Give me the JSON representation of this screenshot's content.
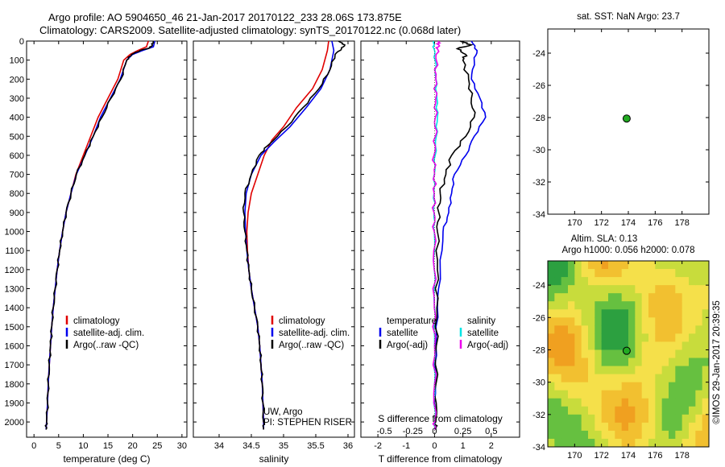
{
  "header": {
    "line1": "Argo profile: AO 5904650_46 21-Jan-2017 20170122_233 28.06S 173.875E",
    "line2": "Climatology: CARS2009. Satellite-adjusted climatology: synTS_20170122.nc (0.068d later)"
  },
  "colors": {
    "climatology": "#e00000",
    "satellite": "#0000ee",
    "argo": "#000000",
    "sal_sat": "#00e5e5",
    "sal_argo": "#ee00ee",
    "marker": "#22aa22"
  },
  "chart_data": [
    {
      "type": "line",
      "name": "temperature",
      "xlabel": "temperature (deg C)",
      "ylabel": "",
      "xlim": [
        -1.5,
        31
      ],
      "ylim": [
        2080,
        0
      ],
      "xticks": [
        0,
        5,
        10,
        15,
        20,
        25,
        30
      ],
      "yticks": [
        0,
        100,
        200,
        300,
        400,
        500,
        600,
        700,
        800,
        900,
        1000,
        1100,
        1200,
        1300,
        1400,
        1500,
        1600,
        1700,
        1800,
        1900,
        2000
      ],
      "legend": [
        "climatology",
        "satellite-adj. clim.",
        "Argo(..raw -QC)"
      ],
      "series": [
        {
          "name": "climatology",
          "color": "#e00000",
          "points": [
            [
              23.2,
              0
            ],
            [
              22.8,
              30
            ],
            [
              21,
              50
            ],
            [
              19.5,
              70
            ],
            [
              18.2,
              100
            ],
            [
              17,
              200
            ],
            [
              15,
              300
            ],
            [
              13,
              400
            ],
            [
              11.5,
              500
            ],
            [
              10,
              600
            ],
            [
              8.5,
              700
            ],
            [
              7.5,
              800
            ],
            [
              6.5,
              900
            ],
            [
              5.8,
              1000
            ],
            [
              5.2,
              1100
            ],
            [
              4.7,
              1200
            ],
            [
              4.3,
              1300
            ],
            [
              3.9,
              1400
            ],
            [
              3.6,
              1500
            ],
            [
              3.35,
              1600
            ],
            [
              3.1,
              1700
            ],
            [
              2.9,
              1800
            ],
            [
              2.75,
              1900
            ],
            [
              2.55,
              2000
            ],
            [
              2.45,
              2040
            ]
          ]
        },
        {
          "name": "satellite-adj. clim.",
          "color": "#0000ee",
          "points": [
            [
              24.5,
              0
            ],
            [
              24.2,
              30
            ],
            [
              22,
              50
            ],
            [
              20,
              70
            ],
            [
              18.8,
              100
            ],
            [
              17.5,
              200
            ],
            [
              15.5,
              300
            ],
            [
              13.5,
              400
            ],
            [
              12,
              500
            ],
            [
              10.3,
              600
            ],
            [
              8.6,
              700
            ],
            [
              7.5,
              800
            ],
            [
              6.5,
              900
            ],
            [
              5.8,
              1000
            ],
            [
              5.2,
              1100
            ],
            [
              4.7,
              1200
            ],
            [
              4.3,
              1300
            ],
            [
              3.9,
              1400
            ],
            [
              3.6,
              1500
            ],
            [
              3.35,
              1600
            ],
            [
              3.1,
              1700
            ],
            [
              2.9,
              1800
            ],
            [
              2.75,
              1900
            ],
            [
              2.55,
              2000
            ],
            [
              2.45,
              2040
            ]
          ]
        },
        {
          "name": "Argo(..raw -QC)",
          "color": "#000000",
          "points": [
            [
              24.2,
              0
            ],
            [
              24,
              20
            ],
            [
              23.5,
              35
            ],
            [
              21.5,
              50
            ],
            [
              19.8,
              70
            ],
            [
              18.8,
              100
            ],
            [
              17.6,
              200
            ],
            [
              15.6,
              300
            ],
            [
              13.8,
              400
            ],
            [
              12,
              500
            ],
            [
              10.3,
              600
            ],
            [
              8.6,
              700
            ],
            [
              7.5,
              800
            ],
            [
              6.5,
              900
            ],
            [
              5.8,
              1000
            ],
            [
              5.2,
              1100
            ],
            [
              4.7,
              1200
            ],
            [
              4.3,
              1300
            ],
            [
              3.9,
              1400
            ],
            [
              3.6,
              1500
            ],
            [
              3.35,
              1600
            ],
            [
              3.1,
              1700
            ],
            [
              2.9,
              1800
            ],
            [
              2.75,
              1900
            ],
            [
              2.55,
              2000
            ],
            [
              2.45,
              2040
            ]
          ]
        }
      ]
    },
    {
      "type": "line",
      "name": "salinity",
      "xlabel": "salinity",
      "ylabel": "",
      "xlim": [
        33.6,
        36.1
      ],
      "ylim": [
        2080,
        0
      ],
      "xticks": [
        34,
        34.5,
        35,
        35.5,
        36
      ],
      "legend": [
        "climatology",
        "satellite-adj. clim.",
        "Argo(..raw -QC)"
      ],
      "annotation": [
        "UW, Argo",
        "PI: STEPHEN RISER"
      ],
      "series": [
        {
          "name": "climatology",
          "color": "#e00000",
          "points": [
            [
              35.7,
              0
            ],
            [
              35.68,
              50
            ],
            [
              35.6,
              150
            ],
            [
              35.45,
              250
            ],
            [
              35.2,
              350
            ],
            [
              35,
              450
            ],
            [
              34.82,
              520
            ],
            [
              34.7,
              600
            ],
            [
              34.6,
              700
            ],
            [
              34.5,
              800
            ],
            [
              34.45,
              900
            ],
            [
              34.43,
              1000
            ],
            [
              34.44,
              1100
            ],
            [
              34.46,
              1200
            ],
            [
              34.5,
              1300
            ],
            [
              34.55,
              1400
            ],
            [
              34.6,
              1500
            ],
            [
              34.63,
              1600
            ],
            [
              34.65,
              1700
            ],
            [
              34.67,
              1800
            ],
            [
              34.68,
              1900
            ],
            [
              34.69,
              2000
            ],
            [
              34.69,
              2040
            ]
          ]
        },
        {
          "name": "satellite-adj. clim.",
          "color": "#0000ee",
          "points": [
            [
              35.75,
              0
            ],
            [
              35.78,
              50
            ],
            [
              35.72,
              150
            ],
            [
              35.58,
              250
            ],
            [
              35.35,
              350
            ],
            [
              35.1,
              450
            ],
            [
              34.85,
              530
            ],
            [
              34.65,
              600
            ],
            [
              34.5,
              700
            ],
            [
              34.42,
              800
            ],
            [
              34.4,
              900
            ],
            [
              34.41,
              1000
            ],
            [
              34.43,
              1100
            ],
            [
              34.46,
              1200
            ],
            [
              34.5,
              1300
            ],
            [
              34.55,
              1400
            ],
            [
              34.6,
              1500
            ],
            [
              34.63,
              1600
            ],
            [
              34.65,
              1700
            ],
            [
              34.67,
              1800
            ],
            [
              34.68,
              1900
            ],
            [
              34.69,
              2000
            ],
            [
              34.69,
              2040
            ]
          ]
        },
        {
          "name": "Argo(..raw -QC)",
          "color": "#000000",
          "points": [
            [
              35.85,
              0
            ],
            [
              35.95,
              20
            ],
            [
              35.9,
              40
            ],
            [
              35.8,
              70
            ],
            [
              35.72,
              150
            ],
            [
              35.55,
              250
            ],
            [
              35.3,
              350
            ],
            [
              35.05,
              450
            ],
            [
              34.75,
              550
            ],
            [
              34.62,
              600
            ],
            [
              34.5,
              700
            ],
            [
              34.4,
              800
            ],
            [
              34.38,
              900
            ],
            [
              34.4,
              1000
            ],
            [
              34.43,
              1100
            ],
            [
              34.46,
              1200
            ],
            [
              34.5,
              1300
            ],
            [
              34.55,
              1400
            ],
            [
              34.6,
              1500
            ],
            [
              34.63,
              1600
            ],
            [
              34.65,
              1700
            ],
            [
              34.67,
              1800
            ],
            [
              34.68,
              1900
            ],
            [
              34.69,
              2000
            ],
            [
              34.69,
              2040
            ]
          ]
        }
      ]
    },
    {
      "type": "line",
      "name": "difference",
      "xlabel": "T difference from climatology",
      "xlabel_top": "S difference from climatology",
      "xlim": [
        -2.6,
        3
      ],
      "ylim": [
        2080,
        0
      ],
      "xticks_bottom": [
        -2,
        -1,
        0,
        1,
        2
      ],
      "xticks_top": [
        "-0.5",
        "-0.25",
        "0",
        "0.25",
        "0.5"
      ],
      "legend_title_left": "temperature",
      "legend_title_right": "salinity",
      "legend": [
        "satellite",
        "Argo(-adj)",
        "satellite",
        "Argo(-adj)"
      ],
      "series": [
        {
          "name": "T satellite",
          "color": "#0000ee",
          "points": [
            [
              1.3,
              0
            ],
            [
              1.5,
              50
            ],
            [
              1.4,
              100
            ],
            [
              1.3,
              200
            ],
            [
              1.6,
              300
            ],
            [
              1.8,
              400
            ],
            [
              1.4,
              500
            ],
            [
              1.1,
              600
            ],
            [
              0.7,
              700
            ],
            [
              0.6,
              800
            ],
            [
              0.5,
              900
            ],
            [
              0.3,
              1000
            ],
            [
              0.2,
              1200
            ],
            [
              0.1,
              1400
            ],
            [
              0.05,
              1600
            ],
            [
              0.03,
              1800
            ],
            [
              0.02,
              2000
            ],
            [
              0.02,
              2040
            ]
          ]
        },
        {
          "name": "T Argo(-adj)",
          "color": "#000000",
          "points": [
            [
              0.9,
              0
            ],
            [
              1.3,
              20
            ],
            [
              0.8,
              40
            ],
            [
              1.1,
              70
            ],
            [
              1.0,
              100
            ],
            [
              1.2,
              200
            ],
            [
              1.3,
              300
            ],
            [
              1.4,
              400
            ],
            [
              1.1,
              500
            ],
            [
              0.6,
              600
            ],
            [
              0.4,
              700
            ],
            [
              0.2,
              800
            ],
            [
              0.15,
              900
            ],
            [
              0.1,
              1000
            ],
            [
              0.1,
              1200
            ],
            [
              0.08,
              1400
            ],
            [
              0.06,
              1600
            ],
            [
              0.05,
              1800
            ],
            [
              0.04,
              2000
            ],
            [
              0.04,
              2040
            ]
          ]
        },
        {
          "name": "S satellite",
          "color": "#00e5e5",
          "points": [
            [
              -0.04,
              0
            ],
            [
              -0.02,
              40
            ],
            [
              0.02,
              100
            ],
            [
              0.05,
              200
            ],
            [
              0.08,
              300
            ],
            [
              0.1,
              400
            ],
            [
              0.06,
              500
            ],
            [
              0.02,
              600
            ],
            [
              -0.01,
              700
            ],
            [
              -0.02,
              800
            ],
            [
              -0.02,
              900
            ],
            [
              -0.01,
              1000
            ],
            [
              -0.01,
              1200
            ],
            [
              0,
              1400
            ],
            [
              0,
              1600
            ],
            [
              0,
              1800
            ],
            [
              0,
              2000
            ],
            [
              0,
              2040
            ]
          ]
        },
        {
          "name": "S Argo(-adj)",
          "color": "#ee00ee",
          "points": [
            [
              0.13,
              0
            ],
            [
              0.15,
              20
            ],
            [
              0.1,
              40
            ],
            [
              0.06,
              100
            ],
            [
              0.04,
              200
            ],
            [
              0.04,
              300
            ],
            [
              0.03,
              400
            ],
            [
              0.03,
              500
            ],
            [
              -0.02,
              600
            ],
            [
              0,
              700
            ],
            [
              -0.01,
              800
            ],
            [
              -0.02,
              900
            ],
            [
              -0.01,
              1000
            ],
            [
              -0.01,
              1200
            ],
            [
              -0.01,
              1400
            ],
            [
              0,
              1600
            ],
            [
              0,
              1800
            ],
            [
              0,
              2000
            ],
            [
              0,
              2040
            ]
          ]
        }
      ]
    },
    {
      "type": "scatter",
      "name": "sst-map",
      "title": "sat. SST: NaN Argo: 23.7",
      "xlim": [
        168,
        180
      ],
      "ylim": [
        -34,
        -22.5
      ],
      "xticks": [
        170,
        172,
        174,
        176,
        178
      ],
      "yticks": [
        -24,
        -26,
        -28,
        -30,
        -32,
        -34
      ],
      "points": [
        [
          173.875,
          -28.06
        ]
      ]
    },
    {
      "type": "heatmap",
      "name": "sla-map",
      "title": "Altim. SLA: 0.13",
      "subtitle": "Argo h1000: 0.056 h2000: 0.078",
      "xlim": [
        168,
        180
      ],
      "ylim": [
        -34,
        -22.5
      ],
      "xticks": [
        170,
        172,
        174,
        176,
        178
      ],
      "yticks": [
        -24,
        -26,
        -28,
        -30,
        -32,
        -34
      ],
      "points": [
        [
          173.875,
          -28.06
        ]
      ]
    }
  ],
  "side_label": "©IMOS 29-Jan-2017 20:39:35"
}
